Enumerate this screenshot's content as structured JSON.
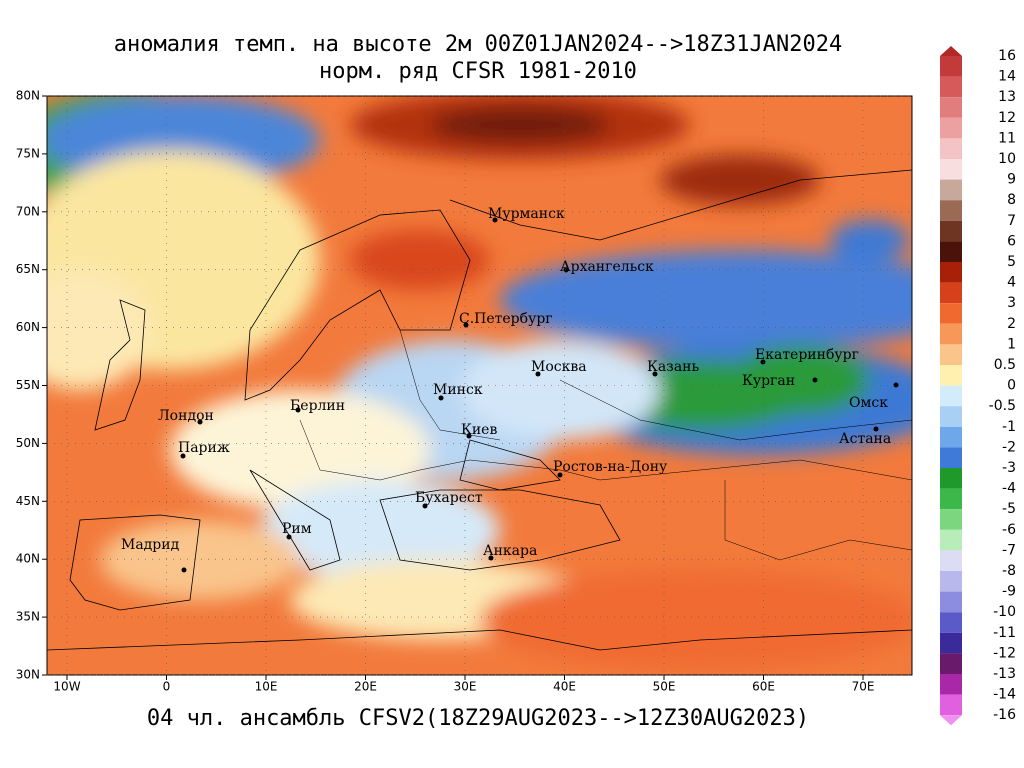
{
  "header": {
    "title": "аномалия темп. на высоте 2м 00Z01JAN2024-->18Z31JAN2024",
    "subtitle": "норм. ряд CFSR 1981-2010"
  },
  "footer": "04 чл. ансамбль CFSV2(18Z29AUG2023-->12Z30AUG2023)",
  "lat_labels": [
    "80N",
    "75N",
    "70N",
    "65N",
    "60N",
    "55N",
    "50N",
    "45N",
    "40N",
    "35N",
    "30N"
  ],
  "lon_labels": [
    "10W",
    "0",
    "10E",
    "20E",
    "30E",
    "40E",
    "50E",
    "60E",
    "70E"
  ],
  "cities": [
    "Мурманск",
    "Архангельск",
    "С.Петербург",
    "Москва",
    "Казань",
    "Екатеринбург",
    "Курган",
    "Омск",
    "Астана",
    "Минск",
    "Киев",
    "Ростов-на-Дону",
    "Бухарест",
    "Анкара",
    "Берлин",
    "Лондон",
    "Париж",
    "Рим",
    "Мадрид"
  ],
  "colorbar": {
    "labels": [
      "16",
      "14",
      "13",
      "12",
      "11",
      "10",
      "9",
      "8",
      "7",
      "6",
      "5",
      "4",
      "3",
      "2",
      "1",
      "0.5",
      "0",
      "-0.5",
      "-1",
      "-2",
      "-3",
      "-4",
      "-5",
      "-6",
      "-7",
      "-8",
      "-9",
      "-10",
      "-11",
      "-12",
      "-13",
      "-14",
      "-16"
    ]
  }
}
